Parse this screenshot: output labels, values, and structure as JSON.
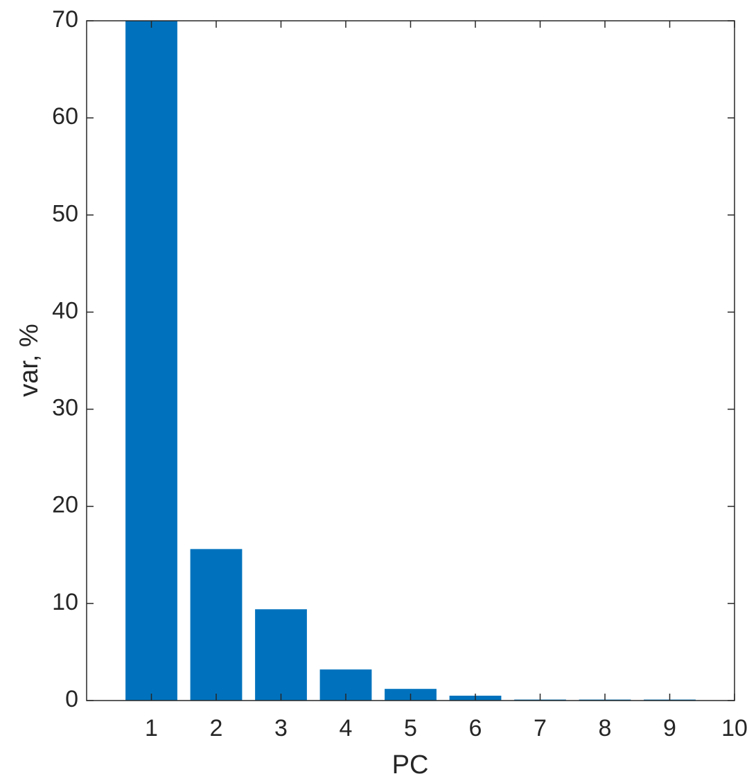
{
  "chart_data": {
    "type": "bar",
    "xlabel": "PC",
    "ylabel": "var, %",
    "x": [
      1,
      2,
      3,
      4,
      5,
      6,
      7,
      8,
      9
    ],
    "values": [
      70,
      15.6,
      9.4,
      3.2,
      1.2,
      0.5,
      0.1,
      0.1,
      0.1
    ],
    "color": "#0072bd",
    "bar_width": 0.8,
    "xlim": [
      0,
      10
    ],
    "xticks": [
      1,
      2,
      3,
      4,
      5,
      6,
      7,
      8,
      9,
      10
    ],
    "ylim": [
      0,
      70
    ],
    "yticks": [
      0,
      10,
      20,
      30,
      40,
      50,
      60,
      70
    ]
  }
}
